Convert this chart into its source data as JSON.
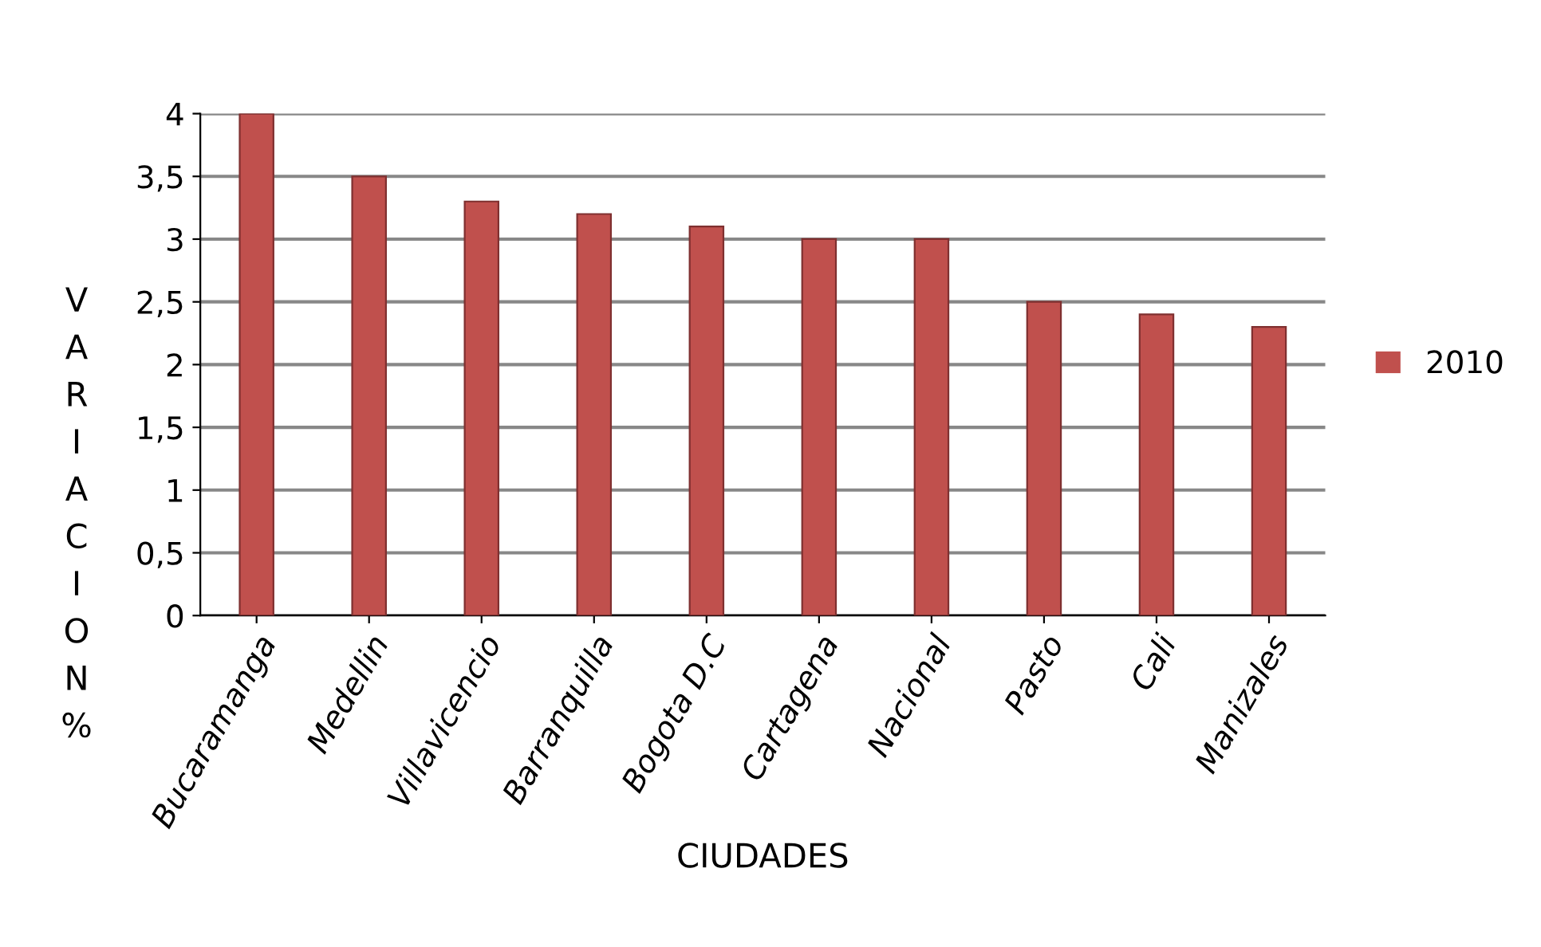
{
  "chart_data": {
    "type": "bar",
    "xlabel": "CIUDADES",
    "ylabel": "VARIACION %",
    "categories": [
      "Bucaramanga",
      "Medellin",
      "Villavicencio",
      "Barranquilla",
      "Bogota D.C",
      "Cartagena",
      "Nacional",
      "Pasto",
      "Cali",
      "Manizales"
    ],
    "series": [
      {
        "name": "2010",
        "color": "#c0504d",
        "values": [
          4.0,
          3.5,
          3.3,
          3.2,
          3.1,
          3.0,
          3.0,
          2.5,
          2.4,
          2.3
        ]
      }
    ],
    "ylim": [
      0,
      4
    ],
    "yticks": [
      0,
      {
        "value": 0.5,
        "label": "0,5"
      },
      1,
      {
        "value": 1.5,
        "label": "1,5"
      },
      2,
      {
        "value": 2.5,
        "label": "2,5"
      },
      3,
      {
        "value": 3.5,
        "label": "3,5"
      },
      4
    ],
    "grid": "y",
    "legend": "right"
  }
}
